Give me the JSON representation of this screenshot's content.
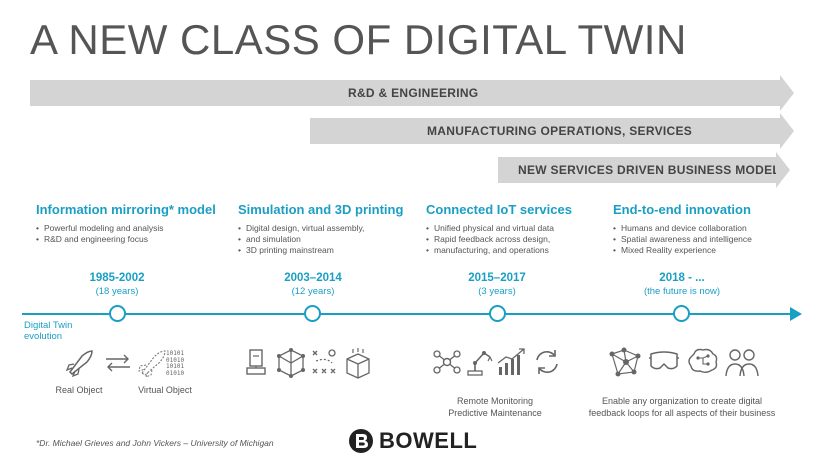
{
  "title": "A NEW CLASS OF DIGITAL TWIN",
  "arrows": [
    {
      "label": "R&D & ENGINEERING"
    },
    {
      "label": "MANUFACTURING OPERATIONS, SERVICES"
    },
    {
      "label": "NEW SERVICES DRIVEN BUSINESS MODELS"
    }
  ],
  "columns": [
    {
      "heading": "Information mirroring* model",
      "bullets": [
        "Powerful modeling and analysis",
        "R&D and engineering focus"
      ]
    },
    {
      "heading": "Simulation and 3D printing",
      "bullets": [
        "Digital design, virtual assembly,",
        "and simulation",
        "3D printing mainstream"
      ]
    },
    {
      "heading": "Connected IoT services",
      "bullets": [
        "Unified physical and virtual data",
        "Rapid feedback across design,",
        "manufacturing, and operations"
      ]
    },
    {
      "heading": "End-to-end innovation",
      "bullets": [
        "Humans and device collaboration",
        "Spatial awareness and intelligence",
        "Mixed Reality experience"
      ]
    }
  ],
  "periods": [
    {
      "years": "1985-2002",
      "duration": "(18 years)"
    },
    {
      "years": "2003–2014",
      "duration": "(12 years)"
    },
    {
      "years": "2015–2017",
      "duration": "(3 years)"
    },
    {
      "years": "2018 - ...",
      "duration": "(the future is now)"
    }
  ],
  "timeline_label": {
    "line1": "Digital Twin",
    "line2": "evolution"
  },
  "captions": {
    "real_object": "Real Object",
    "virtual_object": "Virtual Object",
    "iot_line1": "Remote Monitoring",
    "iot_line2": "Predictive Maintenance",
    "future_line1": "Enable any organization to create digital",
    "future_line2": "feedback loops for all aspects of their business"
  },
  "footnote": "*Dr. Michael Grieves and John Vickers – University of Michigan",
  "logo": "BOWELL",
  "colors": {
    "accent": "#1a9fc4",
    "arrow_gray": "#d4d4d4",
    "title_gray": "#555555"
  }
}
